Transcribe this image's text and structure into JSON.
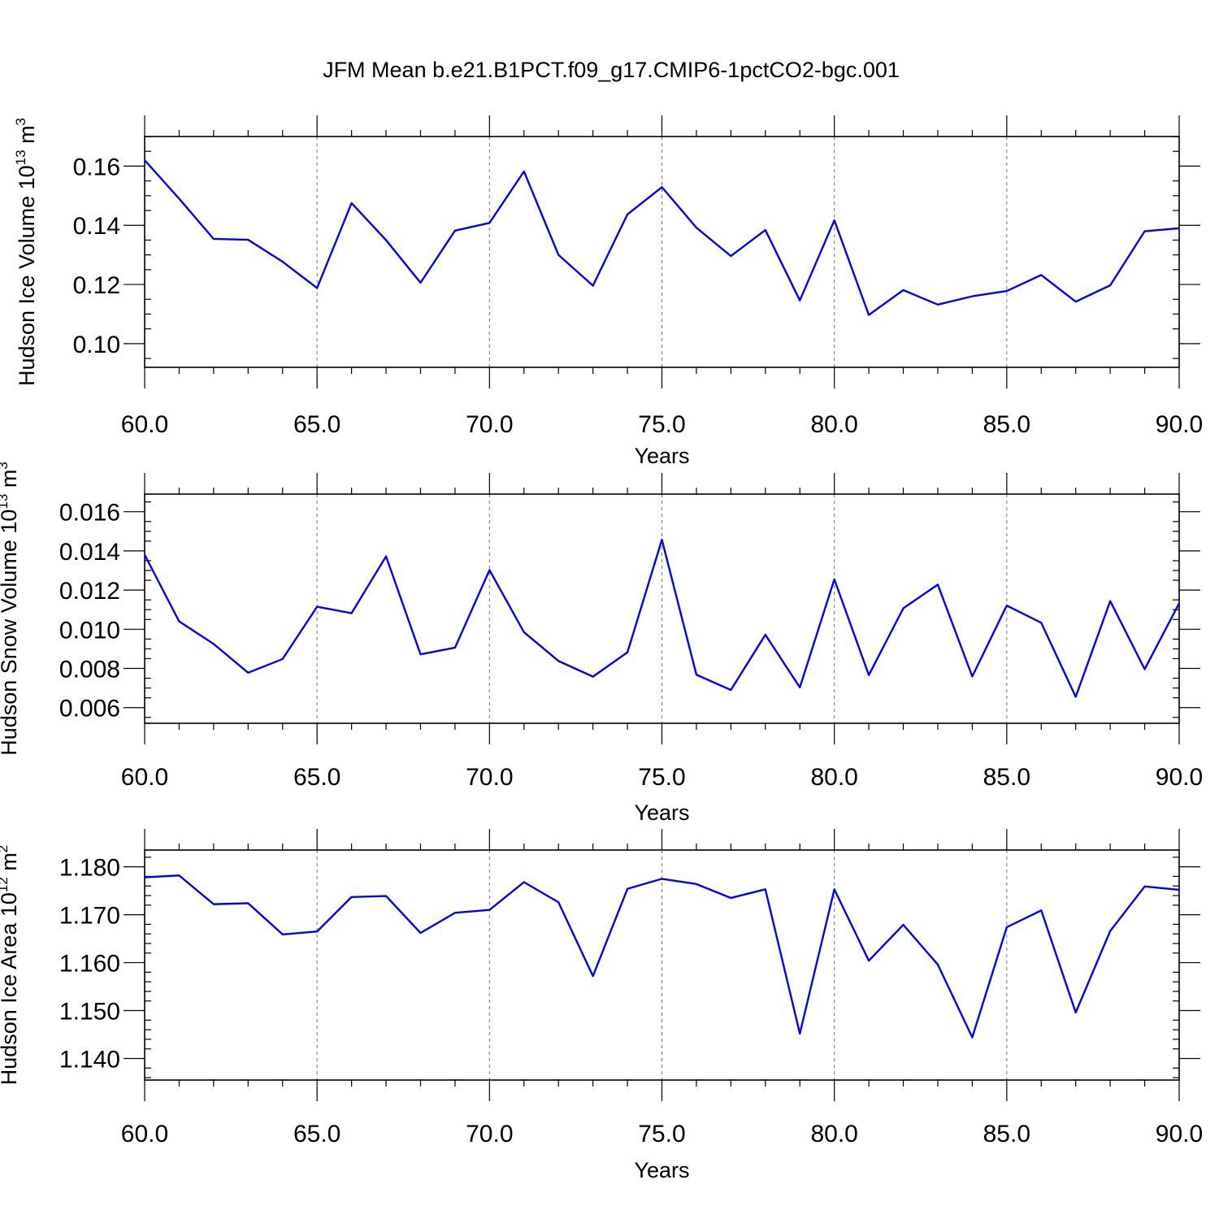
{
  "title": "JFM Mean b.e21.B1PCT.f09_g17.CMIP6-1pctCO2-bgc.001",
  "colors": {
    "line": "#0000ff",
    "grid": "#777777",
    "axis": "#000000"
  },
  "chart_data": [
    {
      "type": "line",
      "xlabel": "Years",
      "ylabel": {
        "text": "Hudson Ice Volume 10",
        "exp": "13",
        "unit": " m",
        "unit_exp": "3"
      },
      "xlim": [
        60,
        90
      ],
      "ylim": [
        0.092,
        0.17
      ],
      "grid": "vertical dashed at major x ticks",
      "x_ticks": [
        60,
        65,
        70,
        75,
        80,
        85,
        90
      ],
      "x_tick_labels": [
        "60.0",
        "65.0",
        "70.0",
        "75.0",
        "80.0",
        "85.0",
        "90.0"
      ],
      "y_ticks": [
        0.1,
        0.12,
        0.14,
        0.16
      ],
      "y_tick_labels": [
        "0.10",
        "0.12",
        "0.14",
        "0.16"
      ],
      "y_minor_step": 0.005,
      "x": [
        60,
        61,
        62,
        63,
        64,
        65,
        66,
        67,
        68,
        69,
        70,
        71,
        72,
        73,
        74,
        75,
        76,
        77,
        78,
        79,
        80,
        81,
        82,
        83,
        84,
        85,
        86,
        87,
        88,
        89,
        90
      ],
      "series": [
        {
          "values": [
            0.162,
            0.149,
            0.1354,
            0.1351,
            0.1277,
            0.1188,
            0.1475,
            0.135,
            0.1206,
            0.1382,
            0.1408,
            0.1582,
            0.13,
            0.1196,
            0.1437,
            0.1529,
            0.1392,
            0.1296,
            0.1384,
            0.1146,
            0.1417,
            0.1097,
            0.1181,
            0.1132,
            0.116,
            0.1178,
            0.1232,
            0.1142,
            0.1197,
            0.138,
            0.139
          ]
        }
      ]
    },
    {
      "type": "line",
      "xlabel": "Years",
      "ylabel": {
        "text": "Hudson Snow Volume 10",
        "exp": "13",
        "unit": " m",
        "unit_exp": "3"
      },
      "xlim": [
        60,
        90
      ],
      "ylim": [
        0.0052,
        0.0169
      ],
      "grid": "vertical dashed at major x ticks",
      "x_ticks": [
        60,
        65,
        70,
        75,
        80,
        85,
        90
      ],
      "x_tick_labels": [
        "60.0",
        "65.0",
        "70.0",
        "75.0",
        "80.0",
        "85.0",
        "90.0"
      ],
      "y_ticks": [
        0.006,
        0.008,
        0.01,
        0.012,
        0.014,
        0.016
      ],
      "y_tick_labels": [
        "0.006",
        "0.008",
        "0.010",
        "0.012",
        "0.014",
        "0.016"
      ],
      "y_minor_step": 0.0005,
      "x": [
        60,
        61,
        62,
        63,
        64,
        65,
        66,
        67,
        68,
        69,
        70,
        71,
        72,
        73,
        74,
        75,
        76,
        77,
        78,
        79,
        80,
        81,
        82,
        83,
        84,
        85,
        86,
        87,
        88,
        89,
        90
      ],
      "series": [
        {
          "values": [
            0.0138,
            0.0104,
            0.00925,
            0.00778,
            0.00848,
            0.01115,
            0.01082,
            0.01372,
            0.00872,
            0.00906,
            0.01302,
            0.00985,
            0.00838,
            0.00758,
            0.00882,
            0.01457,
            0.00768,
            0.0069,
            0.00972,
            0.00703,
            0.01255,
            0.00766,
            0.01107,
            0.01228,
            0.00759,
            0.01121,
            0.01033,
            0.00655,
            0.01144,
            0.00796,
            0.01133
          ]
        }
      ]
    },
    {
      "type": "line",
      "xlabel": "Years",
      "ylabel": {
        "text": "Hudson Ice Area 10",
        "exp": "12",
        "unit": " m",
        "unit_exp": "2"
      },
      "xlim": [
        60,
        90
      ],
      "ylim": [
        1.1355,
        1.1835
      ],
      "grid": "vertical dashed at major x ticks",
      "x_ticks": [
        60,
        65,
        70,
        75,
        80,
        85,
        90
      ],
      "x_tick_labels": [
        "60.0",
        "65.0",
        "70.0",
        "75.0",
        "80.0",
        "85.0",
        "90.0"
      ],
      "y_ticks": [
        1.14,
        1.15,
        1.16,
        1.17,
        1.18
      ],
      "y_tick_labels": [
        "1.140",
        "1.150",
        "1.160",
        "1.170",
        "1.180"
      ],
      "y_minor_step": 0.002,
      "x": [
        60,
        61,
        62,
        63,
        64,
        65,
        66,
        67,
        68,
        69,
        70,
        71,
        72,
        73,
        74,
        75,
        76,
        77,
        78,
        79,
        80,
        81,
        82,
        83,
        84,
        85,
        86,
        87,
        88,
        89,
        90
      ],
      "series": [
        {
          "values": [
            1.1778,
            1.1782,
            1.1722,
            1.1724,
            1.1659,
            1.1665,
            1.1737,
            1.1739,
            1.1662,
            1.1704,
            1.171,
            1.1768,
            1.1726,
            1.1572,
            1.1754,
            1.1775,
            1.1764,
            1.1735,
            1.1753,
            1.1452,
            1.1753,
            1.1604,
            1.1679,
            1.1596,
            1.1444,
            1.1674,
            1.1709,
            1.1496,
            1.1666,
            1.1759,
            1.1752
          ]
        }
      ]
    }
  ]
}
